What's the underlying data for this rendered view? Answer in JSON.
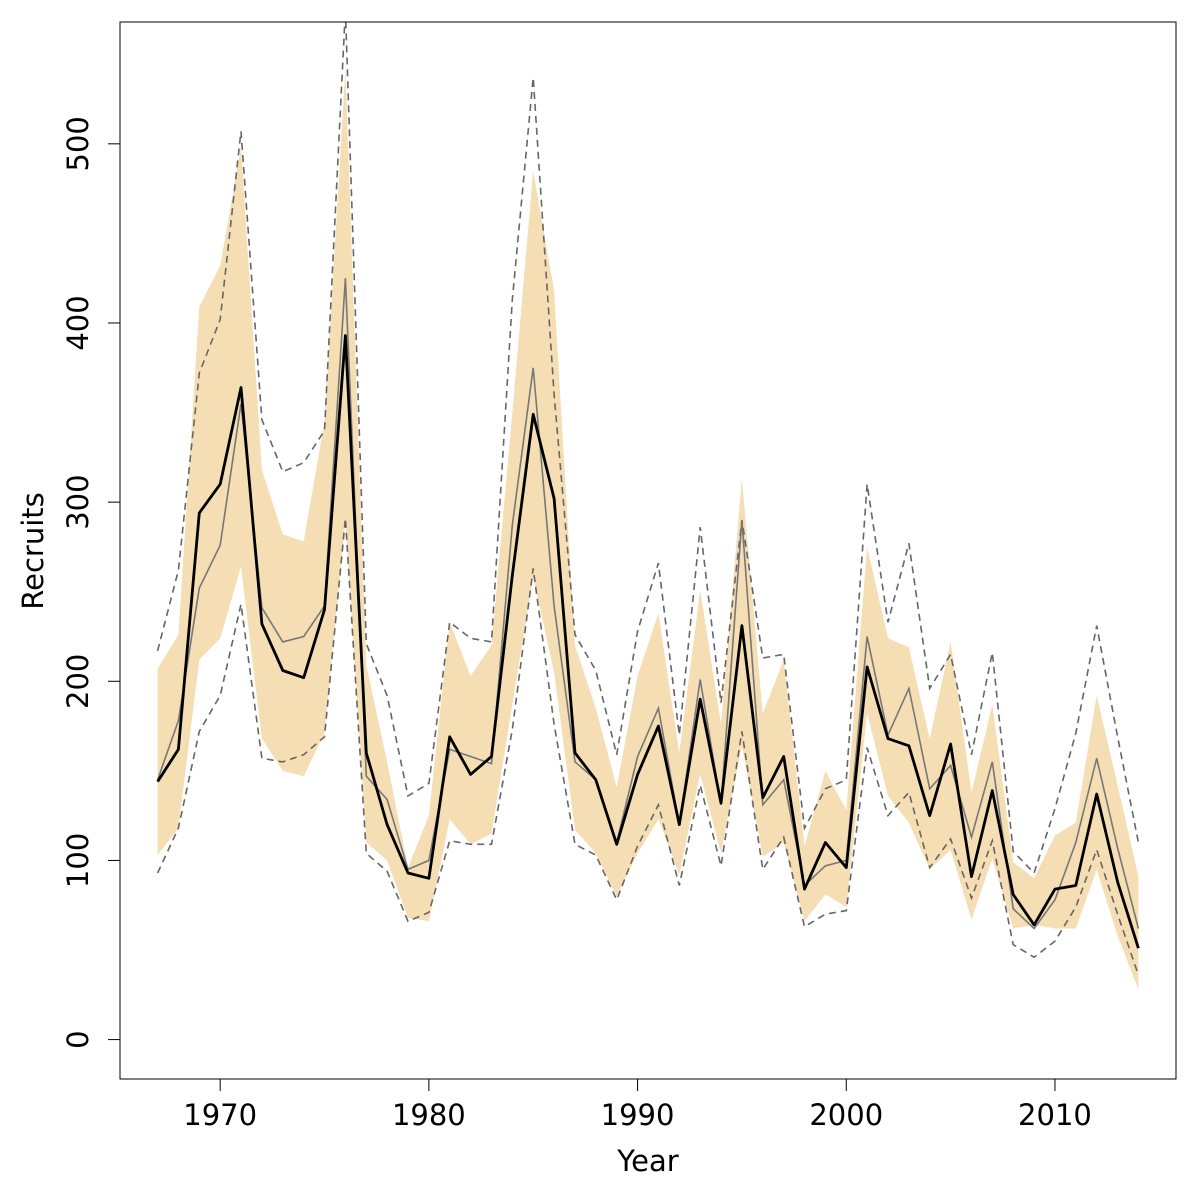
{
  "chart_data": {
    "type": "line",
    "title": "",
    "xlabel": "Year",
    "ylabel": "Recruits",
    "xlim": [
      1965.2,
      2015.8
    ],
    "ylim": [
      -22,
      568
    ],
    "x_ticks": [
      1970,
      1980,
      1990,
      2000,
      2010
    ],
    "y_ticks": [
      0,
      100,
      200,
      300,
      400,
      500
    ],
    "grid": false,
    "legend": "none",
    "x": [
      1967,
      1968,
      1969,
      1970,
      1971,
      1972,
      1973,
      1974,
      1975,
      1976,
      1977,
      1978,
      1979,
      1980,
      1981,
      1982,
      1983,
      1984,
      1985,
      1986,
      1987,
      1988,
      1989,
      1990,
      1991,
      1992,
      1993,
      1994,
      1995,
      1996,
      1997,
      1998,
      1999,
      2000,
      2001,
      2002,
      2003,
      2004,
      2005,
      2006,
      2007,
      2008,
      2009,
      2010,
      2011,
      2012,
      2013,
      2014
    ],
    "series": [
      {
        "role": "band",
        "color": "#f5deb3",
        "lower": [
          103,
          118,
          212,
          224,
          264,
          168,
          150,
          147,
          171,
          290,
          110,
          100,
          68,
          66,
          123,
          109,
          115,
          187,
          258,
          205,
          117,
          104,
          80,
          104,
          123,
          92,
          148,
          104,
          164,
          102,
          110,
          66,
          81,
          74,
          182,
          136,
          121,
          95,
          106,
          67,
          101,
          62,
          64,
          62,
          62,
          95,
          58,
          28
        ],
        "upper": [
          207,
          226,
          409,
          432,
          498,
          318,
          282,
          278,
          345,
          542,
          209,
          155,
          96,
          125,
          233,
          203,
          220,
          350,
          485,
          418,
          220,
          185,
          141,
          203,
          238,
          160,
          251,
          176,
          313,
          182,
          212,
          108,
          150,
          128,
          275,
          224,
          219,
          168,
          222,
          138,
          187,
          99,
          90,
          114,
          121,
          192,
          142,
          91
        ]
      },
      {
        "role": "median",
        "color": "#777777",
        "values": [
          145,
          178,
          252,
          276,
          355,
          241,
          222,
          225,
          242,
          425,
          147,
          134,
          95,
          100,
          162,
          158,
          154,
          287,
          375,
          242,
          155,
          145,
          110,
          158,
          185,
          120,
          201,
          131,
          290,
          131,
          145,
          86,
          97,
          100,
          225,
          170,
          196,
          140,
          153,
          113,
          155,
          73,
          62,
          78,
          110,
          157,
          107,
          62
        ]
      },
      {
        "role": "estimate",
        "color": "#000000",
        "values": [
          144,
          162,
          294,
          310,
          364,
          232,
          206,
          202,
          240,
          393,
          160,
          120,
          93,
          90,
          169,
          148,
          158,
          259,
          349,
          302,
          160,
          145,
          109,
          148,
          175,
          120,
          190,
          132,
          231,
          135,
          158,
          84,
          110,
          96,
          208,
          168,
          164,
          125,
          165,
          91,
          139,
          81,
          64,
          84,
          86,
          137,
          88,
          51
        ]
      },
      {
        "role": "interval",
        "color": "#666666",
        "dash": "dashed",
        "lower": [
          93,
          118,
          172,
          192,
          243,
          157,
          155,
          159,
          169,
          291,
          104,
          94,
          66,
          71,
          111,
          109,
          109,
          173,
          263,
          176,
          109,
          103,
          78,
          108,
          131,
          86,
          142,
          97,
          172,
          95,
          113,
          63,
          70,
          72,
          163,
          125,
          138,
          96,
          112,
          79,
          111,
          53,
          46,
          55,
          74,
          106,
          70,
          36
        ],
        "upper": [
          217,
          262,
          372,
          402,
          507,
          346,
          317,
          322,
          340,
          575,
          221,
          192,
          136,
          143,
          233,
          224,
          222,
          413,
          537,
          360,
          226,
          206,
          159,
          228,
          266,
          170,
          286,
          188,
          290,
          213,
          215,
          118,
          140,
          145,
          310,
          233,
          277,
          196,
          215,
          159,
          216,
          105,
          93,
          129,
          171,
          231,
          169,
          110
        ]
      }
    ]
  }
}
